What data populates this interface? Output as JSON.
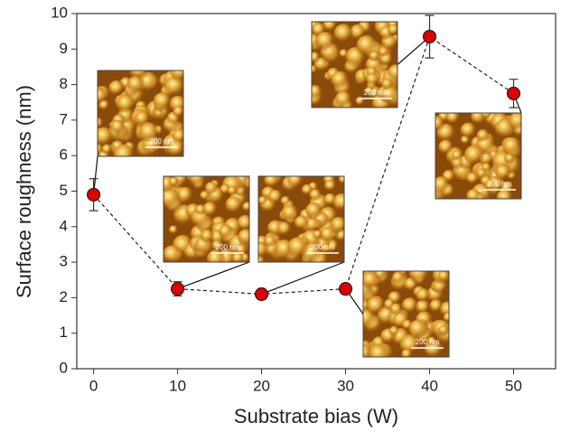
{
  "chart_data": {
    "type": "line",
    "x": [
      0,
      10,
      20,
      30,
      40,
      50
    ],
    "values": [
      4.9,
      2.25,
      2.1,
      2.25,
      9.35,
      7.75
    ],
    "errors": [
      0.45,
      0.2,
      0.1,
      0.1,
      0.6,
      0.4
    ],
    "color": "#e00000",
    "line_style": "dashed",
    "xlim": [
      -2,
      55
    ],
    "xticks": [
      0,
      10,
      20,
      30,
      40,
      50
    ],
    "ylim": [
      0,
      10
    ],
    "yticks": [
      0,
      1,
      2,
      3,
      4,
      5,
      6,
      7,
      8,
      9,
      10
    ],
    "xlabel": "Substrate bias (W)",
    "ylabel": "Surface roughness (nm)",
    "insets": [
      {
        "label": "200 nm"
      },
      {
        "label": "200 nm"
      },
      {
        "label": "200 nm"
      },
      {
        "label": "200 nm"
      },
      {
        "label": "200 nm"
      },
      {
        "label": "200 nm"
      }
    ]
  }
}
